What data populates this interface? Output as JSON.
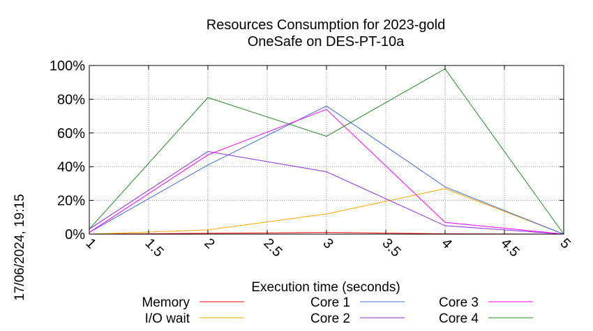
{
  "chart_data": {
    "type": "line",
    "title": "Resources Consumption for 2023-gold",
    "subtitle": "OneSafe on DES-PT-10a",
    "xlabel": "Execution time (seconds)",
    "ylabel": "",
    "side_label": "17/06/2024, 19:15",
    "xlim": [
      1,
      5
    ],
    "ylim": [
      0,
      100
    ],
    "x_ticks": [
      "1",
      "1.5",
      "2",
      "2.5",
      "3",
      "3.5",
      "4",
      "4.5",
      "5"
    ],
    "y_ticks": [
      "0%",
      "20%",
      "40%",
      "60%",
      "80%",
      "100%"
    ],
    "grid": true,
    "legend_position": "bottom",
    "x": [
      1,
      2,
      3,
      4,
      5
    ],
    "series": [
      {
        "name": "Memory",
        "color": "#ff0000",
        "values": [
          0,
          0.5,
          1,
          0.2,
          0
        ]
      },
      {
        "name": "I/O wait",
        "color": "#ffa500",
        "values": [
          0,
          2.5,
          12,
          27,
          0
        ]
      },
      {
        "name": "Core 1",
        "color": "#4169e1",
        "values": [
          1,
          41,
          76,
          28,
          0
        ]
      },
      {
        "name": "Core 2",
        "color": "#8a2be2",
        "values": [
          3,
          49,
          37,
          5,
          0
        ]
      },
      {
        "name": "Core 3",
        "color": "#ff00ff",
        "values": [
          1,
          47,
          74,
          7,
          0
        ]
      },
      {
        "name": "Core 4",
        "color": "#228b22",
        "values": [
          3,
          81,
          58,
          98,
          0
        ]
      }
    ]
  }
}
